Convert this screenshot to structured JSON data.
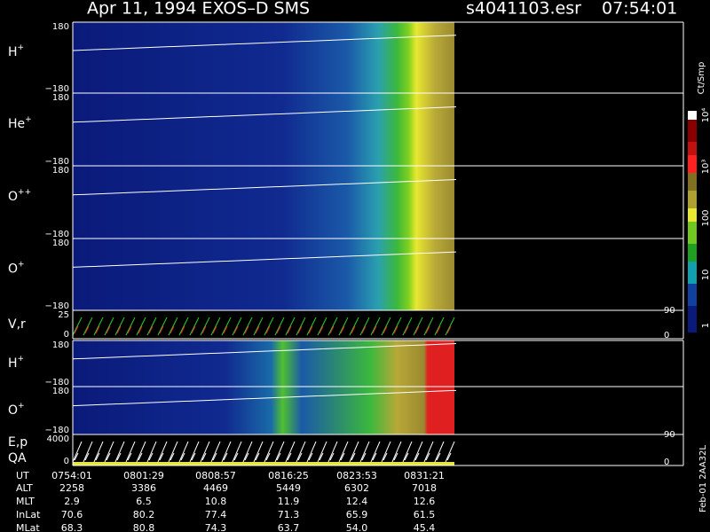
{
  "header": {
    "title": "Apr 11, 1994    EXOS–D SMS",
    "file": "s4041103.esr",
    "time": "07:54:01"
  },
  "panels": [
    {
      "label": "H",
      "sup": "+",
      "ticks": [
        "180",
        "−180"
      ]
    },
    {
      "label": "He",
      "sup": "+",
      "ticks": [
        "180",
        "−180"
      ]
    },
    {
      "label": "O",
      "sup": "++",
      "ticks": [
        "180",
        "−180"
      ]
    },
    {
      "label": "O",
      "sup": "+",
      "ticks": [
        "180",
        "−180"
      ]
    },
    {
      "label": "V,r",
      "ticks": [
        "25",
        "0"
      ],
      "right_ticks": [
        "90",
        "0"
      ]
    },
    {
      "label": "H",
      "sup": "+",
      "ticks": [
        "180",
        "−180"
      ]
    },
    {
      "label": "O",
      "sup": "+",
      "ticks": [
        "180",
        "−180"
      ]
    },
    {
      "label": "E,p",
      "label2": "QA",
      "ticks": [
        "4000",
        "0"
      ],
      "right_ticks": [
        "90",
        "0"
      ]
    }
  ],
  "colorbar": {
    "unit": "Ct/Smp",
    "labels": [
      "10⁴",
      "10³",
      "100",
      "10",
      "1"
    ]
  },
  "footer": {
    "labels": [
      "UT",
      "ALT",
      "MLT",
      "InLat",
      "MLat"
    ],
    "rows": [
      [
        "0754:01",
        "0801:29",
        "0808:57",
        "0816:25",
        "0823:53",
        "0831:21"
      ],
      [
        "2258",
        "3386",
        "4469",
        "5449",
        "6302",
        "7018"
      ],
      [
        "2.9",
        "6.5",
        "10.8",
        "11.9",
        "12.4",
        "12.6"
      ],
      [
        "70.6",
        "80.2",
        "77.4",
        "71.3",
        "65.9",
        "61.5"
      ],
      [
        "68.3",
        "80.8",
        "74.3",
        "63.7",
        "54.0",
        "45.4"
      ]
    ]
  },
  "side_note": "Feb-01 2AA32L"
}
